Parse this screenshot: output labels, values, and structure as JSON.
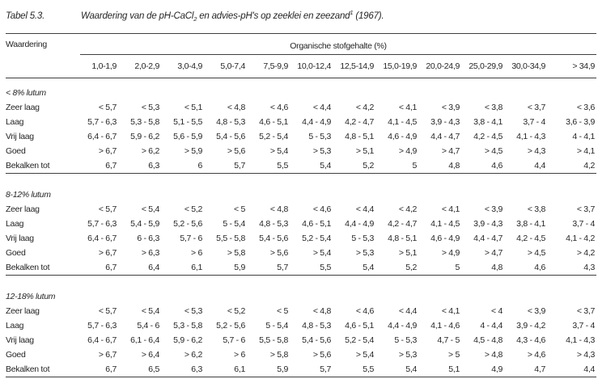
{
  "title": {
    "label": "Tabel 5.3.",
    "text_before_sub": "Waardering van de pH-CaCl",
    "subscript": "2",
    "text_after_sub": " en advies-pH's op zeeklei en zeezand",
    "footnote_marker": "1",
    "text_end": " (1967)."
  },
  "table": {
    "corner_header": "Waardering",
    "group_header": "Organische stofgehalte (%)",
    "columns": [
      "1,0-1,9",
      "2,0-2,9",
      "3,0-4,9",
      "5,0-7,4",
      "7,5-9,9",
      "10,0-12,4",
      "12,5-14,9",
      "15,0-19,9",
      "20,0-24,9",
      "25,0-29,9",
      "30,0-34,9",
      "> 34,9"
    ],
    "sections": [
      {
        "heading": "< 8% lutum",
        "rows": [
          {
            "label": "Zeer laag",
            "values": [
              "< 5,7",
              "< 5,3",
              "< 5,1",
              "< 4,8",
              "< 4,6",
              "< 4,4",
              "< 4,2",
              "< 4,1",
              "< 3,9",
              "< 3,8",
              "< 3,7",
              "< 3,6"
            ]
          },
          {
            "label": "Laag",
            "values": [
              "5,7 - 6,3",
              "5,3 - 5,8",
              "5,1 - 5,5",
              "4,8 - 5,3",
              "4,6 - 5,1",
              "4,4 - 4,9",
              "4,2 - 4,7",
              "4,1 - 4,5",
              "3,9 - 4,3",
              "3,8 - 4,1",
              "3,7 - 4",
              "3,6 - 3,9"
            ]
          },
          {
            "label": "Vrij laag",
            "values": [
              "6,4 - 6,7",
              "5,9 - 6,2",
              "5,6 - 5,9",
              "5,4 - 5,6",
              "5,2 - 5,4",
              "5 - 5,3",
              "4,8 - 5,1",
              "4,6 - 4,9",
              "4,4 - 4,7",
              "4,2 - 4,5",
              "4,1 - 4,3",
              "4 - 4,1"
            ]
          },
          {
            "label": "Goed",
            "values": [
              "> 6,7",
              "> 6,2",
              "> 5,9",
              "> 5,6",
              "> 5,4",
              "> 5,3",
              "> 5,1",
              "> 4,9",
              "> 4,7",
              "> 4,5",
              "> 4,3",
              "> 4,1"
            ]
          },
          {
            "label": "Bekalken tot",
            "values": [
              "6,7",
              "6,3",
              "6",
              "5,7",
              "5,5",
              "5,4",
              "5,2",
              "5",
              "4,8",
              "4,6",
              "4,4",
              "4,2"
            ]
          }
        ]
      },
      {
        "heading": "8-12% lutum",
        "rows": [
          {
            "label": "Zeer laag",
            "values": [
              "< 5,7",
              "< 5,4",
              "< 5,2",
              "< 5",
              "< 4,8",
              "< 4,6",
              "< 4,4",
              "< 4,2",
              "< 4,1",
              "< 3,9",
              "< 3,8",
              "< 3,7"
            ]
          },
          {
            "label": "Laag",
            "values": [
              "5,7 - 6,3",
              "5,4 - 5,9",
              "5,2 - 5,6",
              "5 - 5,4",
              "4,8 - 5,3",
              "4,6 - 5,1",
              "4,4 - 4,9",
              "4,2 - 4,7",
              "4,1 - 4,5",
              "3,9 - 4,3",
              "3,8 - 4,1",
              "3,7 - 4"
            ]
          },
          {
            "label": "Vrij laag",
            "values": [
              "6,4 - 6,7",
              "6 - 6,3",
              "5,7 - 6",
              "5,5 - 5,8",
              "5,4 - 5,6",
              "5,2 - 5,4",
              "5 - 5,3",
              "4,8 - 5,1",
              "4,6 - 4,9",
              "4,4 - 4,7",
              "4,2 - 4,5",
              "4,1 - 4,2"
            ]
          },
          {
            "label": "Goed",
            "values": [
              "> 6,7",
              "> 6,3",
              "> 6",
              "> 5,8",
              "> 5,6",
              "> 5,4",
              "> 5,3",
              "> 5,1",
              "> 4,9",
              "> 4,7",
              "> 4,5",
              "> 4,2"
            ]
          },
          {
            "label": "Bekalken tot",
            "values": [
              "6,7",
              "6,4",
              "6,1",
              "5,9",
              "5,7",
              "5,5",
              "5,4",
              "5,2",
              "5",
              "4,8",
              "4,6",
              "4,3"
            ]
          }
        ]
      },
      {
        "heading": "12-18% lutum",
        "rows": [
          {
            "label": "Zeer laag",
            "values": [
              "< 5,7",
              "< 5,4",
              "< 5,3",
              "< 5,2",
              "< 5",
              "< 4,8",
              "< 4,6",
              "< 4,4",
              "< 4,1",
              "< 4",
              "< 3,9",
              "< 3,7"
            ]
          },
          {
            "label": "Laag",
            "values": [
              "5,7 - 6,3",
              "5,4 - 6",
              "5,3 - 5,8",
              "5,2 - 5,6",
              "5 - 5,4",
              "4,8 - 5,3",
              "4,6 - 5,1",
              "4,4 - 4,9",
              "4,1 - 4,6",
              "4 - 4,4",
              "3,9 - 4,2",
              "3,7 - 4"
            ]
          },
          {
            "label": "Vrij laag",
            "values": [
              "6,4 - 6,7",
              "6,1 - 6,4",
              "5,9 - 6,2",
              "5,7 - 6",
              "5,5 - 5,8",
              "5,4 - 5,6",
              "5,2 - 5,4",
              "5 - 5,3",
              "4,7 - 5",
              "4,5 - 4,8",
              "4,3 - 4,6",
              "4,1 - 4,3"
            ]
          },
          {
            "label": "Goed",
            "values": [
              "> 6,7",
              "> 6,4",
              "> 6,2",
              "> 6",
              "> 5,8",
              "> 5,6",
              "> 5,4",
              "> 5,3",
              "> 5",
              "> 4,8",
              "> 4,6",
              "> 4,3"
            ]
          },
          {
            "label": "Bekalken tot",
            "values": [
              "6,7",
              "6,5",
              "6,3",
              "6,1",
              "5,9",
              "5,7",
              "5,5",
              "5,4",
              "5,1",
              "4,9",
              "4,7",
              "4,4"
            ]
          }
        ]
      }
    ]
  }
}
